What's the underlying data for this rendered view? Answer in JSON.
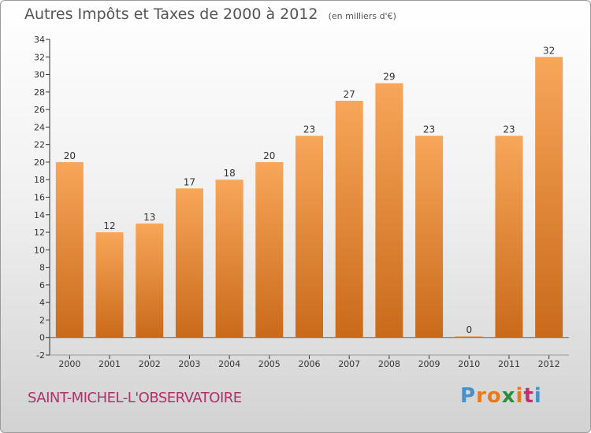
{
  "header": {
    "title": "Autres Impôts et Taxes de 2000 à 2012",
    "subtitle": "(en milliers d'€)"
  },
  "footer": {
    "place": "SAINT-MICHEL-L'OBSERVATOIRE",
    "logo_text": "Proxiti",
    "logo_colors": [
      "#4a90c8",
      "#e87a1e",
      "#e87a1e",
      "#2e8b3a",
      "#e87a1e",
      "#c03070",
      "#4a90c8"
    ]
  },
  "colors": {
    "bar_top": "#f8a65a",
    "bar_bottom": "#c96a1a",
    "axis": "#333333",
    "text": "#333333"
  },
  "chart_data": {
    "type": "bar",
    "title": "Autres Impôts et Taxes de 2000 à 2012",
    "subtitle": "(en milliers d'€)",
    "categories": [
      "2000",
      "2001",
      "2002",
      "2003",
      "2004",
      "2005",
      "2006",
      "2007",
      "2008",
      "2009",
      "2010",
      "2011",
      "2012"
    ],
    "values": [
      20,
      12,
      13,
      17,
      18,
      20,
      23,
      27,
      29,
      23,
      0,
      23,
      32
    ],
    "ylim": [
      -2,
      34
    ],
    "yticks": [
      -2,
      0,
      2,
      4,
      6,
      8,
      10,
      12,
      14,
      16,
      18,
      20,
      22,
      24,
      26,
      28,
      30,
      32,
      34
    ],
    "grid": false,
    "data_labels": true
  }
}
